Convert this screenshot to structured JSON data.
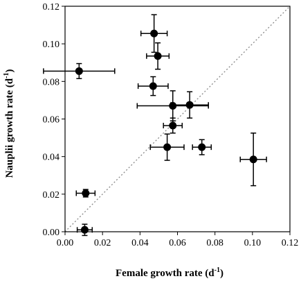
{
  "chart_data": {
    "type": "scatter",
    "xlabel": "Female growth rate (d",
    "xlabel_sup": "-1",
    "xlabel_end": ")",
    "ylabel": "Nauplii growth rate (d",
    "ylabel_sup": "-1",
    "ylabel_end": ")",
    "xlim": [
      0,
      0.12
    ],
    "ylim": [
      0,
      0.12
    ],
    "x_ticks": [
      "0.00",
      "0.02",
      "0.04",
      "0.06",
      "0.08",
      "0.10",
      "0.12"
    ],
    "y_ticks": [
      "0.00",
      "0.02",
      "0.04",
      "0.06",
      "0.08",
      "0.10",
      "0.12"
    ],
    "grid": false,
    "reference_line": "1:1 dotted diagonal",
    "points": [
      {
        "x": 0.0475,
        "y": 0.1055,
        "x_err": 0.007,
        "y_err": 0.01
      },
      {
        "x": 0.0495,
        "y": 0.0935,
        "x_err": 0.006,
        "y_err": 0.007
      },
      {
        "x": 0.0075,
        "y": 0.0855,
        "x_err": 0.019,
        "y_err": 0.004
      },
      {
        "x": 0.047,
        "y": 0.0775,
        "x_err": 0.008,
        "y_err": 0.005
      },
      {
        "x": 0.0575,
        "y": 0.067,
        "x_err": 0.019,
        "y_err": 0.008
      },
      {
        "x": 0.0665,
        "y": 0.0675,
        "x_err": 0.01,
        "y_err": 0.007
      },
      {
        "x": 0.0575,
        "y": 0.0565,
        "x_err": 0.005,
        "y_err": 0.004
      },
      {
        "x": 0.0545,
        "y": 0.045,
        "x_err": 0.009,
        "y_err": 0.007
      },
      {
        "x": 0.073,
        "y": 0.045,
        "x_err": 0.005,
        "y_err": 0.004
      },
      {
        "x": 0.1005,
        "y": 0.0385,
        "x_err": 0.007,
        "y_err": 0.014
      },
      {
        "x": 0.011,
        "y": 0.0205,
        "x_err": 0.005,
        "y_err": 0.002
      },
      {
        "x": 0.0105,
        "y": 0.001,
        "x_err": 0.004,
        "y_err": 0.003
      }
    ]
  },
  "colors": {
    "marker": "#000000",
    "axis": "#000000",
    "reference_line": "#888888"
  }
}
